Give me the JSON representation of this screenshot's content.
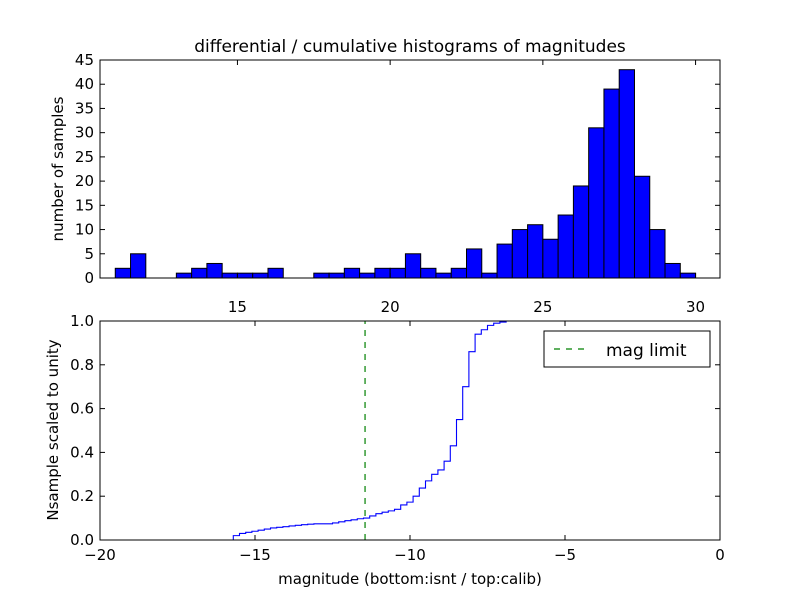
{
  "chart_data": [
    {
      "type": "bar",
      "title": "differential / cumulative histograms of magnitudes",
      "xlabel": "",
      "ylabel": "number of samples",
      "xlim": [
        10.5,
        30.8
      ],
      "ylim": [
        0,
        45
      ],
      "x_ticks": [
        15,
        20,
        25,
        30
      ],
      "y_ticks": [
        0,
        5,
        10,
        15,
        20,
        25,
        30,
        35,
        40,
        45
      ],
      "x_tick_position": "top",
      "bar_color": "#0000ff",
      "bar_width": 0.5,
      "bin_lefts": [
        11.0,
        11.5,
        12.0,
        12.5,
        13.0,
        13.5,
        14.0,
        14.5,
        15.0,
        15.5,
        16.0,
        16.5,
        17.0,
        17.5,
        18.0,
        18.5,
        19.0,
        19.5,
        20.0,
        20.5,
        21.0,
        21.5,
        22.0,
        22.5,
        23.0,
        23.5,
        24.0,
        24.5,
        25.0,
        25.5,
        26.0,
        26.5,
        27.0,
        27.5,
        28.0,
        28.5,
        29.0,
        29.5
      ],
      "values": [
        2,
        5,
        0,
        0,
        1,
        2,
        3,
        1,
        1,
        1,
        2,
        0,
        0,
        1,
        1,
        2,
        1,
        2,
        2,
        5,
        2,
        1,
        2,
        6,
        1,
        7,
        10,
        11,
        8,
        13,
        19,
        31,
        39,
        43,
        21,
        10,
        3,
        1
      ]
    },
    {
      "type": "line",
      "title": "",
      "xlabel": "magnitude (bottom:isnt / top:calib)",
      "ylabel": "Nsample scaled to unity",
      "xlim": [
        -20,
        0
      ],
      "ylim": [
        0,
        1
      ],
      "x_ticks": [
        -20,
        -15,
        -10,
        -5,
        0
      ],
      "x_tick_labels": [
        "−20",
        "−15",
        "−10",
        "−5",
        "0"
      ],
      "y_ticks": [
        0.0,
        0.2,
        0.4,
        0.6,
        0.8,
        1.0
      ],
      "y_tick_labels": [
        "0.0",
        "0.2",
        "0.4",
        "0.6",
        "0.8",
        "1.0"
      ],
      "series": [
        {
          "style": "step",
          "color": "#0000ff",
          "x": [
            -20.0,
            -15.7,
            -15.5,
            -15.3,
            -15.1,
            -14.9,
            -14.7,
            -14.5,
            -14.3,
            -14.1,
            -13.9,
            -13.7,
            -13.5,
            -13.3,
            -13.1,
            -12.5,
            -12.3,
            -12.1,
            -11.9,
            -11.7,
            -11.5,
            -11.3,
            -11.1,
            -10.9,
            -10.7,
            -10.5,
            -10.3,
            -10.1,
            -9.9,
            -9.7,
            -9.5,
            -9.3,
            -9.1,
            -8.9,
            -8.7,
            -8.5,
            -8.3,
            -8.1,
            -7.9,
            -7.7,
            -7.5,
            -7.3,
            -7.1,
            -6.9,
            0.0
          ],
          "y": [
            0.0,
            0.02,
            0.03,
            0.035,
            0.04,
            0.045,
            0.05,
            0.055,
            0.058,
            0.061,
            0.064,
            0.067,
            0.07,
            0.072,
            0.074,
            0.078,
            0.083,
            0.088,
            0.092,
            0.097,
            0.1,
            0.11,
            0.12,
            0.127,
            0.133,
            0.14,
            0.16,
            0.173,
            0.2,
            0.237,
            0.27,
            0.3,
            0.32,
            0.36,
            0.43,
            0.55,
            0.7,
            0.86,
            0.94,
            0.96,
            0.98,
            0.99,
            0.995,
            1.0,
            1.0
          ]
        },
        {
          "name": "mag limit",
          "style": "dashed",
          "color": "#008000",
          "x": [
            -11.45,
            -11.45
          ],
          "y": [
            0,
            1
          ]
        }
      ],
      "legend_position": "top-right"
    }
  ]
}
